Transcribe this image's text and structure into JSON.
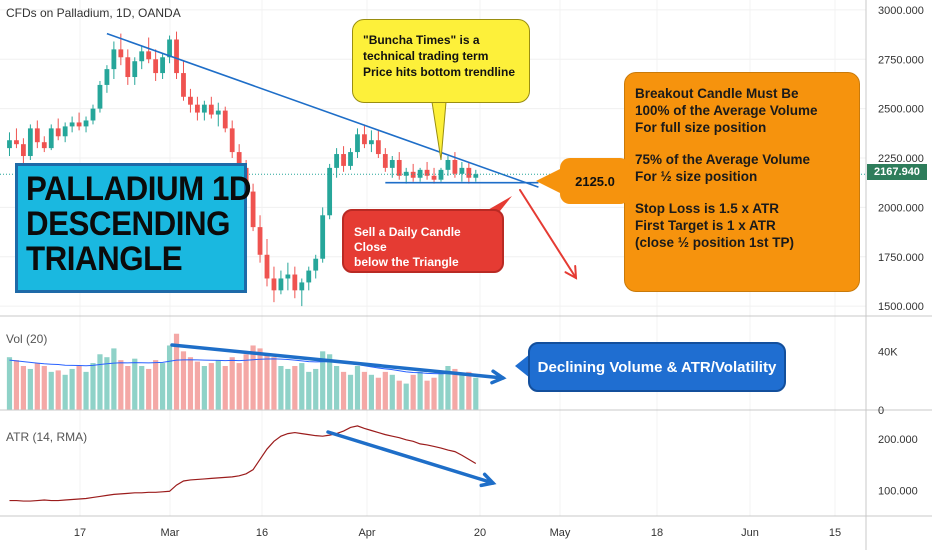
{
  "header": {
    "symbol_title": "CFDs on Palladium, 1D, OANDA"
  },
  "annotations": {
    "title_lines": [
      "PALLADIUM 1D",
      "DESCENDING",
      "TRIANGLE"
    ],
    "yellow_note": [
      "\"Buncha Times\" is a",
      "technical trading term",
      "Price hits bottom trendline"
    ],
    "red_note": [
      "Sell a Daily Candle Close",
      "below the Triangle"
    ],
    "orange_note_1": [
      "Breakout Candle Must Be",
      "100% of the Average Volume",
      "For full size position"
    ],
    "orange_note_2": [
      "75% of the Average Volume",
      "For ½ size position"
    ],
    "orange_note_3": [
      "Stop Loss is 1.5 x ATR",
      "First Target is 1 x ATR",
      "(close ½ position 1st TP)"
    ],
    "price_tag": "2125.0",
    "volume_note": "Declining Volume & ATR/Volatility"
  },
  "last_price": "2167.940",
  "panes": {
    "volume_label": "Vol (20)",
    "atr_label": "ATR (14, RMA)"
  },
  "colors": {
    "up": "#26a69a",
    "down": "#ef5350",
    "trend": "#1e6ec8",
    "atr": "#9b1c1c",
    "vol_ma": "#2962ff"
  },
  "chart_data": [
    {
      "type": "candlestick",
      "title": "CFDs on Palladium, 1D, OANDA",
      "x_ticks": [
        "17",
        "Mar",
        "16",
        "Apr",
        "20",
        "May",
        "18",
        "Jun",
        "15"
      ],
      "y_ticks": [
        "3000.000",
        "2750.000",
        "2500.000",
        "2250.000",
        "2000.000",
        "1750.000",
        "1500.000"
      ],
      "ylim": [
        1450,
        3050
      ],
      "ohlc": [
        [
          2300,
          2380,
          2260,
          2340
        ],
        [
          2340,
          2400,
          2300,
          2320
        ],
        [
          2320,
          2350,
          2220,
          2260
        ],
        [
          2260,
          2420,
          2240,
          2400
        ],
        [
          2400,
          2440,
          2300,
          2330
        ],
        [
          2330,
          2360,
          2280,
          2300
        ],
        [
          2300,
          2420,
          2290,
          2400
        ],
        [
          2400,
          2450,
          2340,
          2360
        ],
        [
          2360,
          2430,
          2330,
          2410
        ],
        [
          2410,
          2460,
          2380,
          2430
        ],
        [
          2430,
          2480,
          2390,
          2410
        ],
        [
          2410,
          2460,
          2380,
          2440
        ],
        [
          2440,
          2520,
          2420,
          2500
        ],
        [
          2500,
          2640,
          2480,
          2620
        ],
        [
          2620,
          2720,
          2580,
          2700
        ],
        [
          2700,
          2840,
          2650,
          2800
        ],
        [
          2800,
          2880,
          2720,
          2760
        ],
        [
          2760,
          2800,
          2620,
          2660
        ],
        [
          2660,
          2760,
          2620,
          2740
        ],
        [
          2740,
          2820,
          2700,
          2790
        ],
        [
          2790,
          2860,
          2730,
          2750
        ],
        [
          2750,
          2800,
          2640,
          2680
        ],
        [
          2680,
          2780,
          2650,
          2760
        ],
        [
          2760,
          2870,
          2730,
          2850
        ],
        [
          2850,
          2890,
          2650,
          2680
        ],
        [
          2680,
          2740,
          2540,
          2560
        ],
        [
          2560,
          2600,
          2480,
          2520
        ],
        [
          2520,
          2560,
          2440,
          2480
        ],
        [
          2480,
          2540,
          2440,
          2520
        ],
        [
          2520,
          2560,
          2450,
          2470
        ],
        [
          2470,
          2530,
          2410,
          2490
        ],
        [
          2490,
          2510,
          2380,
          2400
        ],
        [
          2400,
          2440,
          2250,
          2280
        ],
        [
          2280,
          2320,
          2180,
          2200
        ],
        [
          2200,
          2240,
          2050,
          2080
        ],
        [
          2080,
          2120,
          1880,
          1900
        ],
        [
          1900,
          1960,
          1720,
          1760
        ],
        [
          1760,
          1840,
          1600,
          1640
        ],
        [
          1640,
          1700,
          1520,
          1580
        ],
        [
          1580,
          1680,
          1560,
          1640
        ],
        [
          1640,
          1720,
          1580,
          1660
        ],
        [
          1660,
          1700,
          1540,
          1580
        ],
        [
          1580,
          1640,
          1500,
          1620
        ],
        [
          1620,
          1700,
          1580,
          1680
        ],
        [
          1680,
          1760,
          1640,
          1740
        ],
        [
          1740,
          2000,
          1720,
          1960
        ],
        [
          1960,
          2220,
          1940,
          2200
        ],
        [
          2200,
          2300,
          2150,
          2270
        ],
        [
          2270,
          2310,
          2180,
          2210
        ],
        [
          2210,
          2300,
          2190,
          2280
        ],
        [
          2280,
          2400,
          2250,
          2370
        ],
        [
          2370,
          2420,
          2300,
          2320
        ],
        [
          2320,
          2390,
          2280,
          2340
        ],
        [
          2340,
          2390,
          2250,
          2270
        ],
        [
          2270,
          2300,
          2180,
          2200
        ],
        [
          2200,
          2260,
          2150,
          2240
        ],
        [
          2240,
          2280,
          2140,
          2160
        ],
        [
          2160,
          2200,
          2120,
          2180
        ],
        [
          2180,
          2220,
          2130,
          2150
        ],
        [
          2150,
          2200,
          2130,
          2190
        ],
        [
          2190,
          2230,
          2140,
          2160
        ],
        [
          2160,
          2200,
          2120,
          2140
        ],
        [
          2140,
          2200,
          2130,
          2190
        ],
        [
          2190,
          2260,
          2160,
          2240
        ],
        [
          2240,
          2280,
          2150,
          2170
        ],
        [
          2170,
          2230,
          2130,
          2200
        ],
        [
          2200,
          2230,
          2120,
          2150
        ],
        [
          2150,
          2190,
          2130,
          2168
        ]
      ],
      "descending_trendline": [
        [
          2880,
          14
        ],
        [
          2140,
          73
        ]
      ],
      "support_line": 2125.0,
      "last": 2167.94
    },
    {
      "type": "bar",
      "title": "Vol (20)",
      "y_ticks": [
        "40K",
        "0"
      ],
      "ylim": [
        0,
        60000
      ],
      "values": [
        36000,
        34000,
        30000,
        28000,
        32000,
        30000,
        26000,
        27000,
        24000,
        28000,
        30000,
        26000,
        32000,
        38000,
        36000,
        42000,
        34000,
        30000,
        35000,
        30000,
        28000,
        34000,
        32000,
        44000,
        52000,
        40000,
        36000,
        33000,
        30000,
        32000,
        34000,
        30000,
        36000,
        32000,
        38000,
        44000,
        42000,
        38000,
        36000,
        30000,
        28000,
        30000,
        32000,
        26000,
        28000,
        40000,
        38000,
        30000,
        26000,
        24000,
        30000,
        26000,
        24000,
        22000,
        26000,
        24000,
        20000,
        18000,
        24000,
        26000,
        20000,
        22000,
        26000,
        30000,
        28000,
        24000,
        26000,
        22000
      ],
      "ma_values": [
        34000,
        33500,
        33000,
        32500,
        32000,
        31500,
        31200,
        31000,
        30500,
        30400,
        30300,
        30200,
        30400,
        31000,
        31500,
        32000,
        32200,
        32100,
        32300,
        32200,
        32100,
        32300,
        32500,
        33200,
        34000,
        34200,
        34300,
        34200,
        34000,
        33900,
        33800,
        33700,
        33800,
        33700,
        33900,
        34300,
        34600,
        34800,
        34900,
        34700,
        34400,
        34000,
        33500,
        33000,
        32800,
        32900,
        33000,
        32700,
        32200,
        31500,
        31000,
        30200,
        29400,
        28600,
        28000,
        27500,
        26800,
        26000,
        25600,
        25400,
        25000,
        24800,
        24700,
        24800,
        24900,
        24800,
        24700,
        24500
      ]
    },
    {
      "type": "line",
      "title": "ATR (14, RMA)",
      "y_ticks": [
        "200.000",
        "100.000"
      ],
      "ylim": [
        50,
        250
      ],
      "values": [
        80,
        80,
        79,
        79,
        80,
        81,
        80,
        80,
        81,
        82,
        83,
        84,
        86,
        88,
        90,
        92,
        93,
        94,
        95,
        95,
        96,
        96,
        97,
        98,
        110,
        118,
        120,
        121,
        122,
        123,
        124,
        125,
        126,
        128,
        132,
        140,
        160,
        180,
        195,
        205,
        210,
        212,
        210,
        208,
        206,
        205,
        207,
        210,
        215,
        222,
        225,
        220,
        216,
        212,
        208,
        205,
        202,
        198,
        195,
        190,
        188,
        185,
        182,
        178,
        175,
        168,
        160,
        152
      ]
    }
  ]
}
